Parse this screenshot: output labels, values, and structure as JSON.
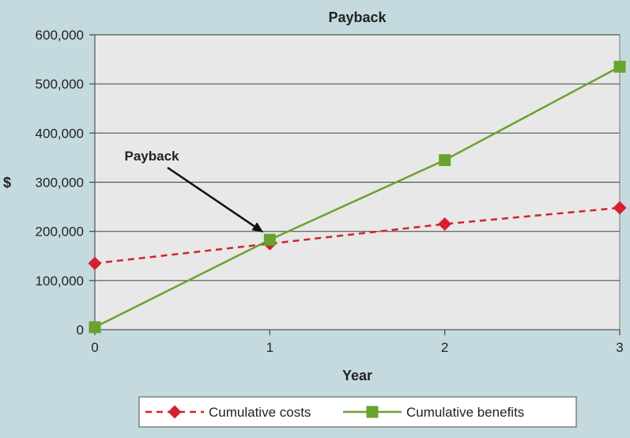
{
  "chart_data": {
    "type": "line",
    "title": "Payback",
    "xlabel": "Year",
    "ylabel": "$",
    "x": [
      0,
      1,
      2,
      3
    ],
    "xlim": [
      0,
      3
    ],
    "ylim": [
      0,
      600000
    ],
    "x_ticks": [
      "0",
      "1",
      "2",
      "3"
    ],
    "y_ticks": [
      "0",
      "100,000",
      "200,000",
      "300,000",
      "400,000",
      "500,000",
      "600,000"
    ],
    "grid": "horizontal",
    "legend_position": "bottom",
    "annotation": {
      "text": "Payback",
      "x": 1.0,
      "y": 185000
    },
    "series": [
      {
        "name": "Cumulative costs",
        "values": [
          135000,
          175000,
          215000,
          248000
        ],
        "color": "#d5202f",
        "line_style": "dashed",
        "marker": "diamond"
      },
      {
        "name": "Cumulative benefits",
        "values": [
          5000,
          183000,
          345000,
          535000
        ],
        "color": "#6aa22e",
        "line_style": "solid",
        "marker": "square"
      }
    ],
    "colors": {
      "background": "#c5dade",
      "plot_area": "#e8e8e8",
      "gridline": "#555555",
      "text": "#222222"
    }
  }
}
